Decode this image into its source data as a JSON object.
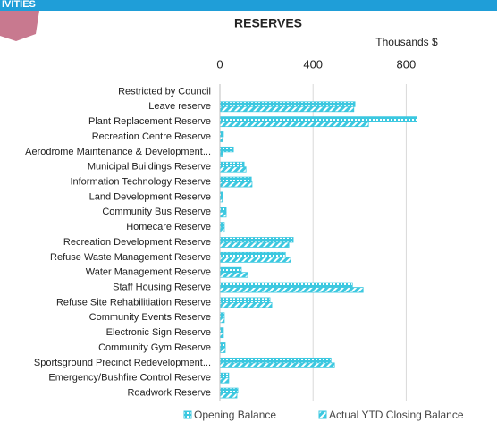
{
  "header": {
    "title": "IVITIES"
  },
  "chart_data": {
    "type": "bar",
    "orientation": "horizontal",
    "title": "RESERVES",
    "axis_label": "Thousands $",
    "categories": [
      "Restricted by Council",
      "Leave reserve",
      "Plant Replacement Reserve",
      "Recreation Centre Reserve",
      "Aerodrome Maintenance  & Development...",
      "Municipal Buildings Reserve",
      "Information Technology Reserve",
      "Land Development Reserve",
      "Community Bus Reserve",
      "Homecare Reserve",
      "Recreation Development Reserve",
      "Refuse Waste Management Reserve",
      "Water Management Reserve",
      "Staff Housing Reserve",
      "Refuse Site Rehabilitiation Reserve",
      "Community Events Reserve",
      "Electronic Sign Reserve",
      "Community Gym Reserve",
      "Sportsground Precinct Redevelopment...",
      "Emergency/Bushfire Control Reserve",
      "Roadwork Reserve"
    ],
    "series": [
      {
        "name": "Opening  Balance",
        "color": "#3cc8e0",
        "pattern": "dots",
        "values": [
          0,
          580,
          846,
          15,
          58,
          104,
          135,
          12,
          27,
          19,
          315,
          281,
          92,
          569,
          215,
          19,
          15,
          23,
          477,
          38,
          77
        ]
      },
      {
        "name": "Actual YTD Closing Balance",
        "color": "#3cc8e0",
        "pattern": "diagonal",
        "values": [
          0,
          575,
          638,
          12,
          10,
          112,
          138,
          10,
          27,
          19,
          296,
          304,
          119,
          615,
          223,
          19,
          15,
          23,
          492,
          38,
          73
        ]
      }
    ],
    "xlim": [
      0,
      1190
    ],
    "xticks": [
      0,
      400,
      800
    ],
    "grid": true,
    "legend": "bottom"
  }
}
